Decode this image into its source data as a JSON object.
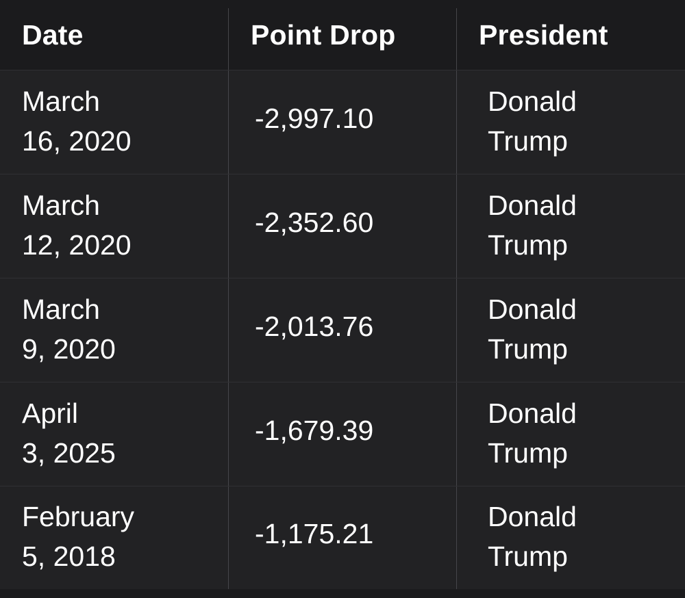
{
  "table": {
    "headers": {
      "date": "Date",
      "drop": "Point Drop",
      "president": "President"
    },
    "rows": [
      {
        "date": "March\n16, 2020",
        "drop": "-2,997.10",
        "president": "Donald\nTrump"
      },
      {
        "date": "March\n12, 2020",
        "drop": "-2,352.60",
        "president": "Donald\nTrump"
      },
      {
        "date": "March\n9, 2020",
        "drop": "-2,013.76",
        "president": "Donald\nTrump"
      },
      {
        "date": "April\n3, 2025",
        "drop": "-1,679.39",
        "president": "Donald\nTrump"
      },
      {
        "date": "February\n5, 2018",
        "drop": "-1,175.21",
        "president": "Donald\nTrump"
      }
    ]
  }
}
